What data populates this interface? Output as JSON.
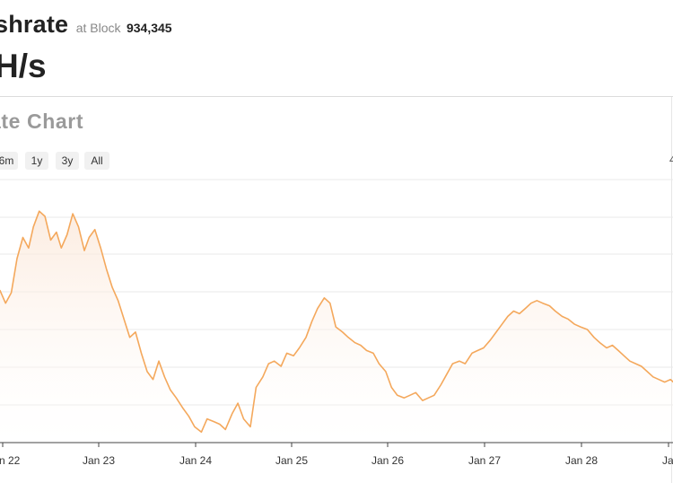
{
  "header": {
    "title": "shrate",
    "block_prefix": "at Block",
    "block_number": "934,345",
    "value": "H/s"
  },
  "card": {
    "title": "ate Chart",
    "range_buttons": [
      "6m",
      "1y",
      "3y",
      "All"
    ],
    "right_edge_mark": "4"
  },
  "colors": {
    "line": "#f4a85c",
    "fill_top": "#fbe6d6",
    "fill_bottom": "#ffffff",
    "grid": "#e9e9e9",
    "axis": "#444444",
    "button_bg": "#f1f1f1"
  },
  "chart_data": {
    "type": "area",
    "x_tick_labels": [
      "n 22",
      "Jan 23",
      "Jan 24",
      "Jan 25",
      "Jan 26",
      "Jan 27",
      "Jan 28",
      "Ja"
    ],
    "x_range": [
      21.97,
      28.95
    ],
    "y_range": [
      0,
      1
    ],
    "grid": true,
    "x": [
      21.97,
      22.03,
      22.09,
      22.15,
      22.21,
      22.27,
      22.32,
      22.38,
      22.44,
      22.5,
      22.56,
      22.61,
      22.67,
      22.73,
      22.79,
      22.85,
      22.9,
      22.96,
      23.02,
      23.08,
      23.14,
      23.2,
      23.26,
      23.32,
      23.38,
      23.44,
      23.5,
      23.56,
      23.62,
      23.68,
      23.74,
      23.8,
      23.87,
      23.93,
      23.99,
      24.06,
      24.12,
      24.19,
      24.25,
      24.31,
      24.38,
      24.44,
      24.5,
      24.57,
      24.63,
      24.7,
      24.76,
      24.82,
      24.89,
      24.95,
      25.02,
      25.08,
      25.15,
      25.21,
      25.27,
      25.34,
      25.4,
      25.46,
      25.53,
      25.59,
      25.66,
      25.72,
      25.78,
      25.85,
      25.91,
      25.98,
      26.04,
      26.1,
      26.17,
      26.23,
      26.29,
      26.36,
      26.42,
      26.48,
      26.55,
      26.61,
      26.67,
      26.74,
      26.8,
      26.87,
      26.93,
      26.99,
      27.06,
      27.12,
      27.18,
      27.24,
      27.3,
      27.36,
      27.42,
      27.48,
      27.54,
      27.6,
      27.67,
      27.73,
      27.8,
      27.86,
      27.93,
      27.99,
      28.06,
      28.13,
      28.19,
      28.26,
      28.32,
      28.38,
      28.44,
      28.5,
      28.56,
      28.62,
      28.68,
      28.74,
      28.8,
      28.86,
      28.92,
      28.95
    ],
    "y": [
      0.58,
      0.53,
      0.57,
      0.7,
      0.78,
      0.74,
      0.82,
      0.88,
      0.86,
      0.77,
      0.8,
      0.74,
      0.79,
      0.87,
      0.82,
      0.73,
      0.78,
      0.81,
      0.74,
      0.66,
      0.59,
      0.54,
      0.47,
      0.4,
      0.42,
      0.34,
      0.27,
      0.24,
      0.31,
      0.25,
      0.2,
      0.17,
      0.13,
      0.1,
      0.06,
      0.04,
      0.09,
      0.08,
      0.07,
      0.05,
      0.11,
      0.15,
      0.09,
      0.06,
      0.21,
      0.25,
      0.3,
      0.31,
      0.29,
      0.34,
      0.33,
      0.36,
      0.4,
      0.46,
      0.51,
      0.55,
      0.53,
      0.44,
      0.42,
      0.4,
      0.38,
      0.37,
      0.35,
      0.34,
      0.3,
      0.27,
      0.21,
      0.18,
      0.17,
      0.18,
      0.19,
      0.16,
      0.17,
      0.18,
      0.22,
      0.26,
      0.3,
      0.31,
      0.3,
      0.34,
      0.35,
      0.36,
      0.39,
      0.42,
      0.45,
      0.48,
      0.5,
      0.49,
      0.51,
      0.53,
      0.54,
      0.53,
      0.52,
      0.5,
      0.48,
      0.47,
      0.45,
      0.44,
      0.43,
      0.4,
      0.38,
      0.36,
      0.37,
      0.35,
      0.33,
      0.31,
      0.3,
      0.29,
      0.27,
      0.25,
      0.24,
      0.23,
      0.24,
      0.23
    ]
  }
}
